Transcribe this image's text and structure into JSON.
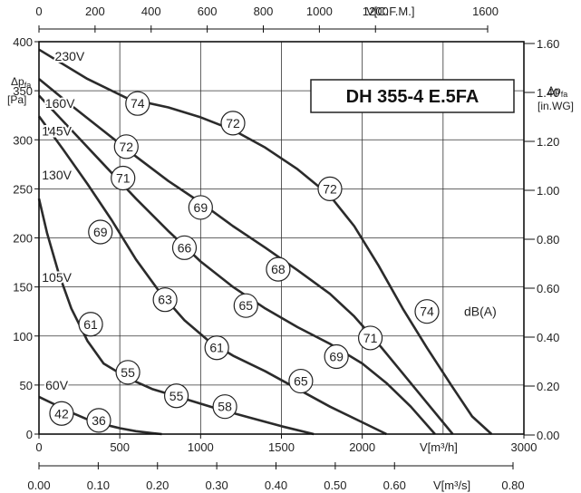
{
  "chart_data": {
    "type": "line",
    "title": "DH 355-4 E.5FA",
    "colors": {
      "curve": "#2b2b2b",
      "grid": "#333333",
      "marker_fill": "#ffffff"
    },
    "grid": true,
    "x_axis_bottom": {
      "label": "V[m³/h]",
      "range": [
        0,
        3000
      ],
      "ticks": [
        "0",
        "500",
        "1000",
        "1500",
        "2000",
        "3000"
      ]
    },
    "x_axis_bottom2": {
      "label": "V[m³/s]",
      "range": [
        0,
        0.8
      ],
      "ticks": [
        "0.00",
        "0.10",
        "0.20",
        "0.30",
        "0.40",
        "0.50",
        "0.60",
        "0.80"
      ]
    },
    "x_axis_top": {
      "label": "V[C.F.M.]",
      "ticks": [
        "0",
        "200",
        "400",
        "600",
        "800",
        "1000",
        "1200",
        "1600"
      ]
    },
    "y_axis_left": {
      "label": "Δp",
      "label_sub": "fa",
      "unit": "[Pa]",
      "range": [
        0,
        400
      ],
      "ticks": [
        "0",
        "50",
        "100",
        "150",
        "200",
        "250",
        "300",
        "350",
        "400"
      ]
    },
    "y_axis_right": {
      "label": "Δp",
      "label_sub": "fa",
      "unit": "[in.WG]",
      "ticks": [
        "0.00",
        "0.20",
        "0.40",
        "0.60",
        "0.80",
        "1.00",
        "1.20",
        "1.40",
        "1.60"
      ]
    },
    "series": [
      {
        "name": "230V",
        "points": [
          [
            0,
            392
          ],
          [
            300,
            362
          ],
          [
            550,
            342
          ],
          [
            800,
            333
          ],
          [
            1000,
            323
          ],
          [
            1200,
            310
          ],
          [
            1400,
            292
          ],
          [
            1600,
            270
          ],
          [
            1800,
            243
          ],
          [
            1950,
            212
          ],
          [
            2100,
            172
          ],
          [
            2250,
            128
          ],
          [
            2400,
            88
          ],
          [
            2550,
            50
          ],
          [
            2680,
            18
          ],
          [
            2800,
            0
          ]
        ]
      },
      {
        "name": "160V",
        "points": [
          [
            0,
            362
          ],
          [
            200,
            335
          ],
          [
            400,
            309
          ],
          [
            600,
            283
          ],
          [
            800,
            258
          ],
          [
            1000,
            236
          ],
          [
            1200,
            212
          ],
          [
            1400,
            190
          ],
          [
            1600,
            167
          ],
          [
            1800,
            143
          ],
          [
            1950,
            120
          ],
          [
            2100,
            92
          ],
          [
            2250,
            62
          ],
          [
            2400,
            32
          ],
          [
            2560,
            0
          ]
        ]
      },
      {
        "name": "145V",
        "points": [
          [
            0,
            345
          ],
          [
            200,
            310
          ],
          [
            400,
            275
          ],
          [
            600,
            240
          ],
          [
            800,
            207
          ],
          [
            1000,
            176
          ],
          [
            1200,
            150
          ],
          [
            1400,
            128
          ],
          [
            1600,
            109
          ],
          [
            1800,
            92
          ],
          [
            2000,
            72
          ],
          [
            2150,
            52
          ],
          [
            2300,
            28
          ],
          [
            2450,
            0
          ]
        ]
      },
      {
        "name": "130V",
        "points": [
          [
            0,
            324
          ],
          [
            150,
            290
          ],
          [
            300,
            255
          ],
          [
            450,
            218
          ],
          [
            600,
            178
          ],
          [
            750,
            144
          ],
          [
            900,
            116
          ],
          [
            1050,
            95
          ],
          [
            1200,
            80
          ],
          [
            1400,
            64
          ],
          [
            1600,
            46
          ],
          [
            1800,
            28
          ],
          [
            2000,
            12
          ],
          [
            2150,
            0
          ]
        ]
      },
      {
        "name": "105V",
        "points": [
          [
            0,
            240
          ],
          [
            50,
            205
          ],
          [
            120,
            165
          ],
          [
            200,
            128
          ],
          [
            300,
            95
          ],
          [
            400,
            72
          ],
          [
            550,
            57
          ],
          [
            700,
            46
          ],
          [
            900,
            36
          ],
          [
            1100,
            26
          ],
          [
            1300,
            17
          ],
          [
            1500,
            8
          ],
          [
            1700,
            0
          ]
        ]
      },
      {
        "name": "60V",
        "points": [
          [
            0,
            38
          ],
          [
            100,
            30
          ],
          [
            200,
            22
          ],
          [
            300,
            15
          ],
          [
            400,
            10
          ],
          [
            500,
            6
          ],
          [
            600,
            3
          ],
          [
            700,
            1
          ],
          [
            760,
            0
          ]
        ]
      }
    ],
    "voltage_labels": [
      {
        "text": "230V",
        "x": 190,
        "y": 385
      },
      {
        "text": "160V",
        "x": 130,
        "y": 337
      },
      {
        "text": "145V",
        "x": 110,
        "y": 309
      },
      {
        "text": "130V",
        "x": 110,
        "y": 264
      },
      {
        "text": "105V",
        "x": 110,
        "y": 160
      },
      {
        "text": "60V",
        "x": 110,
        "y": 50
      }
    ],
    "noise_markers": [
      {
        "text": "74",
        "x": 610,
        "y": 337
      },
      {
        "text": "72",
        "x": 1200,
        "y": 317
      },
      {
        "text": "72",
        "x": 1800,
        "y": 250
      },
      {
        "text": "74",
        "x": 2400,
        "y": 125
      },
      {
        "text": "72",
        "x": 540,
        "y": 293
      },
      {
        "text": "69",
        "x": 1000,
        "y": 231
      },
      {
        "text": "68",
        "x": 1480,
        "y": 168
      },
      {
        "text": "71",
        "x": 2050,
        "y": 98
      },
      {
        "text": "71",
        "x": 520,
        "y": 261
      },
      {
        "text": "66",
        "x": 900,
        "y": 190
      },
      {
        "text": "65",
        "x": 1280,
        "y": 131
      },
      {
        "text": "69",
        "x": 1840,
        "y": 79
      },
      {
        "text": "69",
        "x": 380,
        "y": 206
      },
      {
        "text": "63",
        "x": 780,
        "y": 137
      },
      {
        "text": "61",
        "x": 1100,
        "y": 88
      },
      {
        "text": "65",
        "x": 1620,
        "y": 54
      },
      {
        "text": "61",
        "x": 320,
        "y": 112
      },
      {
        "text": "55",
        "x": 550,
        "y": 63
      },
      {
        "text": "55",
        "x": 850,
        "y": 39
      },
      {
        "text": "58",
        "x": 1150,
        "y": 28
      },
      {
        "text": "42",
        "x": 140,
        "y": 21
      },
      {
        "text": "36",
        "x": 370,
        "y": 14
      }
    ],
    "unit_label": {
      "text": "dB(A)",
      "x": 2630,
      "y": 125
    }
  }
}
